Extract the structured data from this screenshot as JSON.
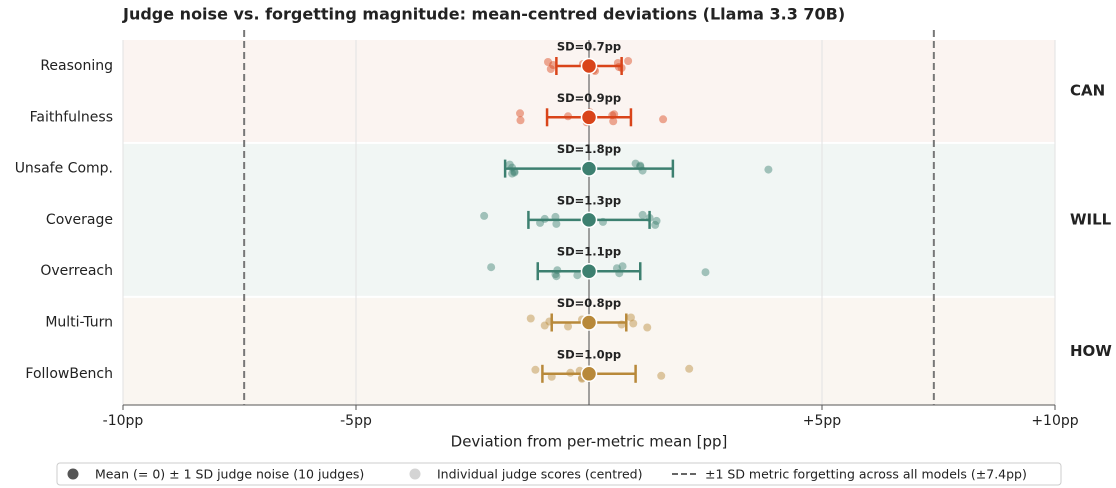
{
  "chart_data": {
    "type": "dot",
    "title": "Judge noise vs. forgetting magnitude: mean-centred deviations  (Llama 3.3 70B)",
    "xlabel": "Deviation from per-metric mean  [pp]",
    "xlim": [
      -10,
      10
    ],
    "xticks": [
      {
        "value": -10,
        "label": "-10pp"
      },
      {
        "value": -5,
        "label": "-5pp"
      },
      {
        "value": 5,
        "label": "+5pp"
      },
      {
        "value": 10,
        "label": "+10pp"
      }
    ],
    "grid": true,
    "zero_line": 0,
    "forgetting_sd": 7.4,
    "groups": [
      {
        "name": "CAN",
        "color": "#d9441a",
        "band_color": "#fbf4f1",
        "rows": [
          {
            "category": "Reasoning",
            "label_color": "#b8913a",
            "mean": 0,
            "sd": 0.7,
            "sd_label": "SD=0.7pp",
            "judges": [
              -0.88,
              -0.82,
              -0.77,
              0.1,
              0.62,
              0.7,
              0.84,
              0.64,
              0.13,
              -0.13
            ]
          },
          {
            "category": "Faithfulness",
            "label_color": "#b8913a",
            "mean": 0,
            "sd": 0.9,
            "sd_label": "SD=0.9pp",
            "judges": [
              -1.48,
              -1.47,
              -0.45,
              0.52,
              0.54,
              1.59,
              0.02,
              0.06,
              -0.05,
              0.5
            ]
          }
        ]
      },
      {
        "name": "WILL",
        "color": "#3d8070",
        "band_color": "#f1f6f4",
        "rows": [
          {
            "category": "Unsafe Comp.",
            "label_color": "#3d8b73",
            "mean": 0,
            "sd": 1.8,
            "sd_label": "SD=1.8pp",
            "judges": [
              -1.7,
              -1.6,
              -1.65,
              -1.6,
              1.1,
              1.15,
              1.0,
              3.85,
              -1.65,
              1.1
            ]
          },
          {
            "category": "Coverage",
            "label_color": "#3d8b73",
            "mean": 0,
            "sd": 1.3,
            "sd_label": "SD=1.3pp",
            "judges": [
              -2.25,
              -1.05,
              -0.95,
              -0.7,
              -0.72,
              0.3,
              1.15,
              1.45,
              1.42,
              1.3
            ]
          },
          {
            "category": "Overreach",
            "label_color": "#3d8b73",
            "mean": 0,
            "sd": 1.1,
            "sd_label": "SD=1.1pp",
            "judges": [
              -2.1,
              -0.72,
              -0.68,
              -0.25,
              0.6,
              0.65,
              0.72,
              2.5,
              -0.7,
              0.0
            ]
          }
        ]
      },
      {
        "name": "HOW",
        "color": "#b8893a",
        "band_color": "#faf6f1",
        "rows": [
          {
            "category": "Multi-Turn",
            "label_color": "#d0451b",
            "mean": 0,
            "sd": 0.8,
            "sd_label": "SD=0.8pp",
            "judges": [
              -1.25,
              -0.95,
              -0.85,
              -0.45,
              -0.15,
              0.7,
              0.9,
              0.95,
              1.25,
              0.0
            ]
          },
          {
            "category": "FollowBench",
            "label_color": "#d0451b",
            "mean": 0,
            "sd": 1.0,
            "sd_label": "SD=1.0pp",
            "judges": [
              -1.15,
              -0.8,
              -0.4,
              -0.15,
              -0.2,
              1.55,
              2.15,
              0.0,
              -0.15,
              0.05
            ]
          }
        ]
      }
    ],
    "legend": [
      "Mean (= 0) ± 1 SD judge noise  (10 judges)",
      "Individual judge scores (centred)",
      "±1 SD metric forgetting across all models  (±7.4pp)"
    ]
  }
}
